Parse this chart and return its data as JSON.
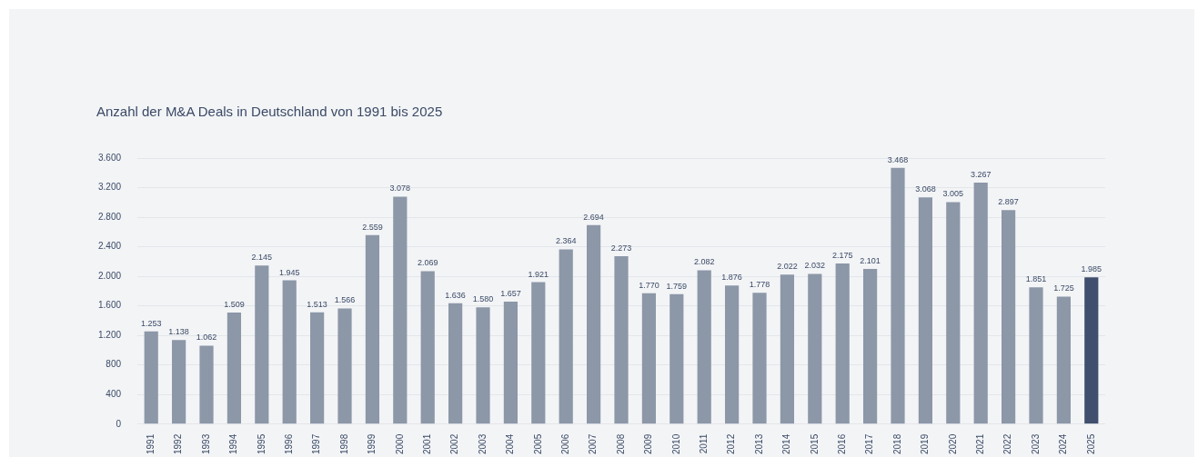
{
  "chart_data": {
    "type": "bar",
    "title": "Anzahl der M&A Deals in Deutschland von 1991 bis 2025",
    "categories": [
      "1991",
      "1992",
      "1993",
      "1994",
      "1995",
      "1996",
      "1997",
      "1998",
      "1999",
      "2000",
      "2001",
      "2002",
      "2003",
      "2004",
      "2005",
      "2006",
      "2007",
      "2008",
      "2009",
      "2010",
      "2011",
      "2012",
      "2013",
      "2014",
      "2015",
      "2016",
      "2017",
      "2018",
      "2019",
      "2020",
      "2021",
      "2022",
      "2023",
      "2024",
      "2025"
    ],
    "values": [
      1253,
      1138,
      1062,
      1509,
      2145,
      1945,
      1513,
      1566,
      2559,
      3078,
      2069,
      1636,
      1580,
      1657,
      1921,
      2364,
      2694,
      2273,
      1770,
      1759,
      2082,
      1876,
      1778,
      2022,
      2032,
      2175,
      2101,
      3468,
      3068,
      3005,
      3267,
      2897,
      1851,
      1725,
      1985
    ],
    "value_labels": [
      "1.253",
      "1.138",
      "1.062",
      "1.509",
      "2.145",
      "1.945",
      "1.513",
      "1.566",
      "2.559",
      "3.078",
      "2.069",
      "1.636",
      "1.580",
      "1.657",
      "1.921",
      "2.364",
      "2.694",
      "2.273",
      "1.770",
      "1.759",
      "2.082",
      "1.876",
      "1.778",
      "2.022",
      "2.032",
      "2.175",
      "2.101",
      "3.468",
      "3.068",
      "3.005",
      "3.267",
      "2.897",
      "1.851",
      "1.725",
      "1.985"
    ],
    "colors": [
      "#8c97a8",
      "#8c97a8",
      "#8c97a8",
      "#8c97a8",
      "#8c97a8",
      "#8c97a8",
      "#8c97a8",
      "#8c97a8",
      "#8c97a8",
      "#8c97a8",
      "#8c97a8",
      "#8c97a8",
      "#8c97a8",
      "#8c97a8",
      "#8c97a8",
      "#8c97a8",
      "#8c97a8",
      "#8c97a8",
      "#8c97a8",
      "#8c97a8",
      "#8c97a8",
      "#8c97a8",
      "#8c97a8",
      "#8c97a8",
      "#8c97a8",
      "#8c97a8",
      "#8c97a8",
      "#8c97a8",
      "#8c97a8",
      "#8c97a8",
      "#8c97a8",
      "#8c97a8",
      "#8c97a8",
      "#8c97a8",
      "#3f4f6d"
    ],
    "ylim": [
      0,
      3600
    ],
    "yticks": [
      {
        "value": 0,
        "label": "0"
      },
      {
        "value": 400,
        "label": "400"
      },
      {
        "value": 800,
        "label": "800"
      },
      {
        "value": 1200,
        "label": "1.200"
      },
      {
        "value": 1600,
        "label": "1.600"
      },
      {
        "value": 2000,
        "label": "2.000"
      },
      {
        "value": 2400,
        "label": "2.400"
      },
      {
        "value": 2800,
        "label": "2.800"
      },
      {
        "value": 3200,
        "label": "3.200"
      },
      {
        "value": 3600,
        "label": "3.600"
      }
    ],
    "grid": "y",
    "legend": false
  }
}
